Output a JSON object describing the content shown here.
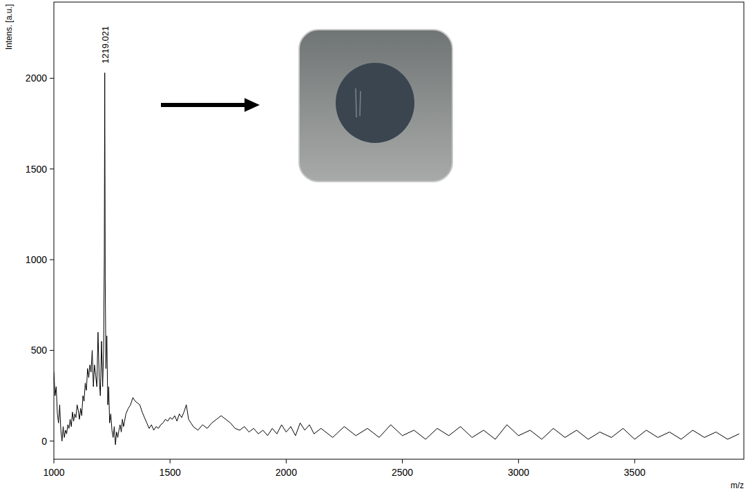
{
  "chart_data": {
    "type": "line",
    "y_label": "Intens. [a.u.]",
    "x_label": "m/z",
    "annotations": [
      {
        "text": "1219.021",
        "x": 1219.021
      }
    ],
    "color": "#000000",
    "grid": false,
    "xlim": [
      1000,
      3970
    ],
    "ylim": [
      -100,
      2420
    ],
    "xticks": [
      1000,
      1500,
      2000,
      2500,
      3000,
      3500
    ],
    "yticks": [
      0,
      500,
      1000,
      1500,
      2000
    ],
    "x": [
      1000,
      1005,
      1010,
      1015,
      1020,
      1025,
      1030,
      1035,
      1040,
      1045,
      1050,
      1055,
      1060,
      1065,
      1070,
      1075,
      1080,
      1085,
      1090,
      1095,
      1100,
      1105,
      1110,
      1115,
      1120,
      1125,
      1130,
      1135,
      1140,
      1145,
      1150,
      1155,
      1160,
      1165,
      1170,
      1175,
      1180,
      1185,
      1190,
      1195,
      1200,
      1205,
      1210,
      1214,
      1217,
      1219.021,
      1221,
      1224,
      1228,
      1232,
      1236,
      1240,
      1245,
      1250,
      1255,
      1260,
      1265,
      1270,
      1275,
      1280,
      1285,
      1290,
      1295,
      1300,
      1310,
      1320,
      1330,
      1340,
      1350,
      1360,
      1370,
      1380,
      1390,
      1400,
      1410,
      1420,
      1430,
      1440,
      1450,
      1460,
      1470,
      1480,
      1490,
      1500,
      1510,
      1520,
      1530,
      1540,
      1550,
      1560,
      1570,
      1580,
      1590,
      1600,
      1620,
      1640,
      1660,
      1680,
      1700,
      1720,
      1740,
      1760,
      1780,
      1800,
      1820,
      1840,
      1860,
      1880,
      1900,
      1920,
      1940,
      1960,
      1980,
      2000,
      2020,
      2040,
      2060,
      2080,
      2100,
      2120,
      2150,
      2200,
      2250,
      2300,
      2350,
      2400,
      2450,
      2500,
      2550,
      2600,
      2650,
      2700,
      2750,
      2800,
      2850,
      2900,
      2950,
      3000,
      3050,
      3100,
      3150,
      3200,
      3250,
      3300,
      3350,
      3400,
      3450,
      3500,
      3550,
      3600,
      3650,
      3700,
      3750,
      3800,
      3850,
      3900,
      3950
    ],
    "values": [
      380,
      250,
      300,
      150,
      100,
      200,
      60,
      0,
      80,
      20,
      60,
      40,
      90,
      70,
      120,
      80,
      160,
      110,
      150,
      130,
      200,
      170,
      120,
      180,
      140,
      250,
      220,
      320,
      280,
      400,
      350,
      420,
      380,
      500,
      300,
      420,
      360,
      300,
      600,
      350,
      250,
      550,
      300,
      500,
      1000,
      2030,
      900,
      400,
      580,
      200,
      300,
      100,
      150,
      60,
      20,
      80,
      -20,
      50,
      20,
      60,
      90,
      50,
      120,
      80,
      150,
      180,
      200,
      240,
      220,
      210,
      200,
      160,
      130,
      100,
      70,
      90,
      60,
      80,
      70,
      90,
      100,
      120,
      110,
      130,
      120,
      140,
      110,
      150,
      130,
      160,
      200,
      120,
      100,
      80,
      60,
      90,
      70,
      100,
      120,
      140,
      120,
      100,
      70,
      60,
      80,
      50,
      70,
      40,
      60,
      30,
      70,
      40,
      90,
      50,
      80,
      30,
      100,
      60,
      90,
      40,
      70,
      20,
      80,
      30,
      70,
      20,
      90,
      30,
      60,
      10,
      70,
      30,
      80,
      20,
      60,
      10,
      90,
      30,
      60,
      10,
      70,
      20,
      60,
      10,
      50,
      20,
      70,
      10,
      60,
      20,
      50,
      10,
      60,
      20,
      50,
      10,
      40
    ]
  }
}
